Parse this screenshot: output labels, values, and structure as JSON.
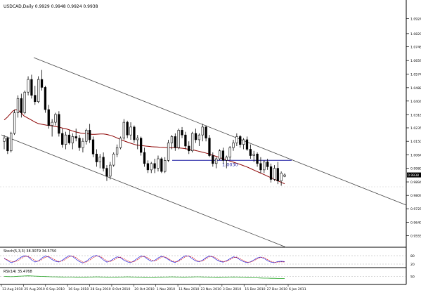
{
  "chart_data": [
    {
      "type": "candlestick",
      "panel": "main",
      "header": "USDCAD,Daily  0.9929 0.9948 0.9924 0.9938",
      "symbol": "USDCAD",
      "timeframe": "Daily",
      "ohlc_readout": [
        0.9929,
        0.9948,
        0.9924,
        0.9938
      ],
      "ylim": [
        0.95,
        1.097
      ],
      "y_ticks": [
        "1.0924",
        "1.0829",
        "1.0746",
        "1.0659",
        "1.0574",
        "1.0488",
        "1.0404",
        "1.0318",
        "1.0235",
        "1.0150",
        "1.0064",
        "0.9980",
        "0.9894",
        "0.9809",
        "0.9725",
        "0.9640",
        "0.9555"
      ],
      "x_ticks": [
        "13 Aug 2010",
        "25 Aug 2010",
        "6 Sep 2010",
        "16 Sep 2010",
        "28 Sep 2010",
        "8 Oct 2010",
        "20 Oct 2010",
        "1 Nov 2010",
        "11 Nov 2010",
        "23 Nov 2010",
        "3 Dec 2010",
        "15 Dec 2010",
        "27 Dec 2010",
        "6 Jan 2011"
      ],
      "price_marker": "0.9938",
      "horizontal_level": {
        "label": "1.0030",
        "value": 1.003
      },
      "moving_average": [
        1.0285,
        1.03,
        1.032,
        1.034,
        1.035,
        1.0345,
        1.033,
        1.031,
        1.03,
        1.029,
        1.028,
        1.027,
        1.0262,
        1.0258,
        1.0255,
        1.0252,
        1.025,
        1.0248,
        1.0244,
        1.024,
        1.0236,
        1.0232,
        1.0228,
        1.0222,
        1.0216,
        1.021,
        1.0206,
        1.0202,
        1.02,
        1.0198,
        1.0196,
        1.0194,
        1.0194,
        1.0195,
        1.0196,
        1.0196,
        1.0194,
        1.019,
        1.0185,
        1.0178,
        1.017,
        1.0162,
        1.0155,
        1.0148,
        1.0142,
        1.0136,
        1.013,
        1.0126,
        1.0124,
        1.0122,
        1.012,
        1.0118,
        1.0116,
        1.0115,
        1.0114,
        1.0113,
        1.0112,
        1.0111,
        1.011,
        1.011,
        1.011,
        1.011,
        1.0108,
        1.0106,
        1.0103,
        1.01,
        1.0097,
        1.0094,
        1.009,
        1.0086,
        1.0082,
        1.0077,
        1.0072,
        1.0066,
        1.006,
        1.0054,
        1.0048,
        1.0042,
        1.0036,
        1.003,
        1.0024,
        1.0018,
        1.0012,
        1.0006,
        1.0,
        0.9993,
        0.9986,
        0.9978,
        0.997,
        0.9962,
        0.9954,
        0.9946,
        0.9938,
        0.993,
        0.9922,
        0.9914,
        0.9906,
        0.9898,
        0.989,
        0.9882
      ],
      "candles": [
        [
          1.015,
          1.019,
          1.01,
          1.017
        ],
        [
          1.017,
          1.018,
          1.007,
          1.009
        ],
        [
          1.009,
          1.021,
          1.008,
          1.02
        ],
        [
          1.02,
          1.035,
          1.019,
          1.033
        ],
        [
          1.033,
          1.044,
          1.03,
          1.042
        ],
        [
          1.042,
          1.045,
          1.03,
          1.033
        ],
        [
          1.033,
          1.047,
          1.032,
          1.046
        ],
        [
          1.046,
          1.056,
          1.044,
          1.054
        ],
        [
          1.054,
          1.057,
          1.042,
          1.044
        ],
        [
          1.044,
          1.05,
          1.038,
          1.04
        ],
        [
          1.04,
          1.056,
          1.039,
          1.054
        ],
        [
          1.054,
          1.06,
          1.047,
          1.049
        ],
        [
          1.049,
          1.05,
          1.033,
          1.035
        ],
        [
          1.035,
          1.038,
          1.023,
          1.025
        ],
        [
          1.025,
          1.029,
          1.018,
          1.027
        ],
        [
          1.027,
          1.033,
          1.025,
          1.032
        ],
        [
          1.032,
          1.034,
          1.018,
          1.02
        ],
        [
          1.02,
          1.023,
          1.011,
          1.013
        ],
        [
          1.013,
          1.021,
          1.01,
          1.019
        ],
        [
          1.019,
          1.022,
          1.013,
          1.014
        ],
        [
          1.014,
          1.02,
          1.01,
          1.018
        ],
        [
          1.018,
          1.023,
          1.015,
          1.017
        ],
        [
          1.017,
          1.019,
          1.009,
          1.011
        ],
        [
          1.011,
          1.017,
          1.008,
          1.015
        ],
        [
          1.015,
          1.023,
          1.013,
          1.022
        ],
        [
          1.022,
          1.026,
          1.014,
          1.016
        ],
        [
          1.016,
          1.018,
          1.005,
          1.007
        ],
        [
          1.007,
          1.01,
          0.999,
          1.002
        ],
        [
          1.002,
          1.007,
          0.998,
          1.005
        ],
        [
          1.005,
          1.008,
          0.996,
          0.998
        ],
        [
          0.998,
          1.0,
          0.99,
          0.993
        ],
        [
          0.993,
          1.002,
          0.991,
          1.0
        ],
        [
          1.0,
          1.008,
          0.999,
          1.007
        ],
        [
          1.007,
          1.013,
          1.005,
          1.011
        ],
        [
          1.011,
          1.018,
          1.01,
          1.017
        ],
        [
          1.017,
          1.029,
          1.016,
          1.027
        ],
        [
          1.027,
          1.028,
          1.017,
          1.019
        ],
        [
          1.019,
          1.027,
          1.016,
          1.024
        ],
        [
          1.024,
          1.025,
          1.014,
          1.016
        ],
        [
          1.016,
          1.019,
          1.01,
          1.017
        ],
        [
          1.017,
          1.018,
          1.006,
          1.008
        ],
        [
          1.008,
          1.011,
          0.999,
          1.001
        ],
        [
          1.001,
          1.003,
          0.995,
          0.997
        ],
        [
          0.997,
          1.002,
          0.995,
          1.001
        ],
        [
          1.001,
          1.004,
          0.995,
          0.998
        ],
        [
          0.998,
          1.006,
          0.996,
          1.004
        ],
        [
          1.004,
          1.005,
          0.995,
          0.996
        ],
        [
          0.996,
          1.005,
          0.995,
          1.003
        ],
        [
          1.003,
          1.016,
          1.002,
          1.014
        ],
        [
          1.014,
          1.019,
          1.01,
          1.018
        ],
        [
          1.018,
          1.02,
          1.009,
          1.011
        ],
        [
          1.011,
          1.023,
          1.01,
          1.022
        ],
        [
          1.022,
          1.024,
          1.017,
          1.019
        ],
        [
          1.019,
          1.021,
          1.01,
          1.012
        ],
        [
          1.012,
          1.015,
          1.007,
          1.009
        ],
        [
          1.009,
          1.021,
          1.008,
          1.02
        ],
        [
          1.02,
          1.023,
          1.014,
          1.016
        ],
        [
          1.016,
          1.02,
          1.012,
          1.019
        ],
        [
          1.019,
          1.026,
          1.015,
          1.024
        ],
        [
          1.024,
          1.025,
          1.015,
          1.017
        ],
        [
          1.017,
          1.019,
          1.005,
          1.006
        ],
        [
          1.006,
          1.008,
          0.999,
          1.001
        ],
        [
          1.001,
          1.005,
          0.998,
          1.004
        ],
        [
          1.004,
          1.01,
          1.003,
          1.009
        ],
        [
          1.009,
          1.011,
          1.001,
          1.003
        ],
        [
          1.003,
          1.006,
          0.998,
          1.005
        ],
        [
          1.005,
          1.012,
          1.003,
          1.011
        ],
        [
          1.011,
          1.016,
          1.009,
          1.014
        ],
        [
          1.014,
          1.02,
          1.012,
          1.018
        ],
        [
          1.018,
          1.019,
          1.011,
          1.013
        ],
        [
          1.013,
          1.017,
          1.01,
          1.016
        ],
        [
          1.016,
          1.018,
          1.009,
          1.01
        ],
        [
          1.01,
          1.013,
          1.004,
          1.006
        ],
        [
          1.006,
          1.009,
          1.002,
          1.007
        ],
        [
          1.007,
          1.008,
          0.999,
          1.001
        ],
        [
          1.001,
          1.005,
          0.995,
          0.997
        ],
        [
          0.997,
          1.003,
          0.995,
          1.002
        ],
        [
          1.002,
          1.004,
          0.997,
          0.999
        ],
        [
          0.999,
          1.001,
          0.989,
          0.991
        ],
        [
          0.991,
          1.0,
          0.99,
          0.998
        ],
        [
          0.998,
          1.002,
          0.988,
          0.99
        ],
        [
          0.99,
          0.996,
          0.987,
          0.995
        ],
        [
          0.9929,
          0.9948,
          0.9924,
          0.9938
        ]
      ]
    },
    {
      "type": "line",
      "panel": "stochastic",
      "header": "Stoch(5,3,3) 38.3079 34.5750",
      "values_readout": [
        38.3079,
        34.575
      ],
      "y_ticks": [
        "80",
        "20"
      ],
      "ylim": [
        0,
        100
      ],
      "series": [
        {
          "color": "#2020e0",
          "values": [
            62,
            45,
            30,
            38,
            55,
            70,
            80,
            72,
            50,
            35,
            42,
            63,
            78,
            70,
            52,
            40,
            35,
            48,
            66,
            80,
            74,
            55,
            38,
            28,
            40,
            60,
            76,
            82,
            70,
            50,
            34,
            42,
            58,
            72,
            66,
            48,
            36,
            30,
            44,
            62,
            78,
            72,
            54,
            40,
            46,
            64,
            76,
            68,
            52,
            38,
            32,
            46,
            66,
            80,
            76,
            58,
            42,
            36,
            48,
            66,
            78,
            70,
            52,
            40,
            34,
            44,
            58,
            72,
            66,
            50,
            38,
            30,
            36,
            50,
            64,
            70,
            60,
            44,
            34,
            30,
            38,
            40,
            38
          ]
        },
        {
          "color": "#e02020",
          "values": [
            58,
            50,
            40,
            36,
            45,
            60,
            74,
            76,
            62,
            45,
            40,
            52,
            68,
            74,
            62,
            48,
            38,
            42,
            55,
            72,
            78,
            66,
            48,
            34,
            34,
            48,
            66,
            78,
            76,
            60,
            42,
            38,
            48,
            64,
            70,
            58,
            44,
            34,
            38,
            52,
            70,
            76,
            64,
            48,
            42,
            54,
            70,
            72,
            60,
            44,
            36,
            40,
            56,
            74,
            78,
            68,
            50,
            40,
            42,
            58,
            72,
            74,
            62,
            46,
            38,
            40,
            52,
            66,
            70,
            58,
            44,
            34,
            34,
            44,
            58,
            68,
            66,
            52,
            40,
            33,
            34,
            36,
            35
          ]
        }
      ]
    },
    {
      "type": "line",
      "panel": "rsi",
      "header": "RSI(14) 35.4768",
      "value_readout": 35.4768,
      "y_ticks": [
        "50"
      ],
      "ylim": [
        0,
        100
      ],
      "series": [
        {
          "color": "#20a020",
          "values": [
            50,
            49,
            48,
            49,
            51,
            52,
            53,
            54,
            53,
            52,
            51,
            50,
            49,
            48,
            47,
            47,
            46,
            46,
            45,
            45,
            45,
            44,
            44,
            43,
            44,
            45,
            46,
            47,
            46,
            45,
            44,
            43,
            43,
            44,
            45,
            46,
            47,
            46,
            45,
            44,
            43,
            42,
            41,
            41,
            42,
            43,
            44,
            45,
            46,
            47,
            46,
            45,
            44,
            44,
            45,
            46,
            47,
            47,
            46,
            45,
            44,
            43,
            42,
            42,
            43,
            44,
            45,
            46,
            45,
            44,
            43,
            42,
            41,
            40,
            40,
            39,
            38,
            38,
            37,
            37,
            36,
            36,
            35.5
          ]
        }
      ]
    }
  ]
}
